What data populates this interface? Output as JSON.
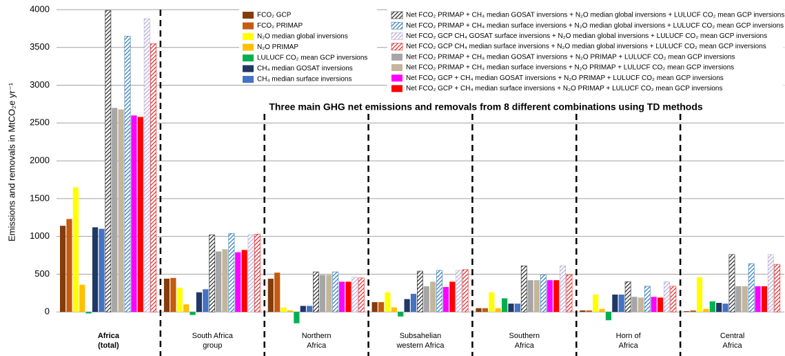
{
  "chart_data": {
    "type": "bar",
    "title": "Three main GHG net emissions and removals from 8 different combinations using TD methods",
    "y_label": "Emissions and removals  in MtCO₂e yr⁻¹",
    "categories": [
      "Africa\n(total)",
      "South Africa\ngroup",
      "Northern\nAfrica",
      "Subsahelian\nwestern Africa",
      "Southern\nAfrica",
      "Horn of\nAfrica",
      "Central\nAfrica"
    ],
    "ylim": [
      -300,
      4000
    ],
    "yticks": [
      0,
      500,
      1000,
      1500,
      2000,
      2500,
      3000,
      3500,
      4000
    ],
    "grid": true,
    "series": [
      {
        "name": "FCO₂ GCP",
        "color": "#843c0c",
        "values": [
          1140,
          440,
          440,
          130,
          50,
          20,
          10
        ]
      },
      {
        "name": "FCO₂ PRIMAP",
        "color": "#c55a11",
        "values": [
          1230,
          450,
          520,
          130,
          50,
          20,
          20
        ]
      },
      {
        "name": "N₂O median global inversions",
        "color": "#ffff00",
        "values": [
          1650,
          320,
          60,
          260,
          260,
          230,
          460
        ]
      },
      {
        "name": "N₂O PRIMAP",
        "color": "#ffc000",
        "values": [
          360,
          100,
          20,
          60,
          50,
          40,
          40
        ]
      },
      {
        "name": "LULUCF CO₂ mean GCP inversions",
        "color": "#00b050",
        "values": [
          -20,
          -40,
          -150,
          -60,
          180,
          -110,
          140
        ]
      },
      {
        "name": "CH₄ median GOSAT inversions",
        "color": "#1f3864",
        "values": [
          1120,
          260,
          80,
          170,
          110,
          230,
          120
        ]
      },
      {
        "name": "CH₄ median surface inversions",
        "color": "#4472c4",
        "values": [
          1100,
          300,
          80,
          240,
          110,
          230,
          110
        ]
      },
      {
        "name": "Net  FCO₂ PRIMAP + CH₄ median GOSAT inversions + N₂O median global inversions + LULUCF CO₂ mean GCP inversions",
        "color": "#222222",
        "hatch": true,
        "values": [
          3990,
          1020,
          530,
          540,
          610,
          400,
          760
        ]
      },
      {
        "name": "Net  FCO₂ PRIMAP + CH₄ median GOSAT inversions + N₂O PRIMAP + LULUCF CO₂ mean GCP inversions",
        "color": "#a6a6a6",
        "values": [
          2700,
          800,
          490,
          340,
          420,
          200,
          340
        ]
      },
      {
        "name": "Net  FCO₂ PRIMAP + CH₄ median surface inversions + N₂O PRIMAP + LULUCF CO₂ mean GCP inversions",
        "color": "#c4b59b",
        "values": [
          2680,
          830,
          490,
          400,
          420,
          190,
          340
        ]
      },
      {
        "name": "Net  FCO₂ PRIMAP + CH₄ median surface inversions + N₂O median global inversions + LULUCF CO₂ mean GCP inversions",
        "color": "#2e75b6",
        "hatch": true,
        "values": [
          3650,
          1040,
          530,
          550,
          490,
          340,
          640
        ]
      },
      {
        "name": "Net  FCO₂ GCP  + CH₄ median GOSAT inversions + N₂O PRIMAP + LULUCF CO₂ mean GCP inversions",
        "color": "#ff00ff",
        "values": [
          2600,
          790,
          400,
          330,
          420,
          200,
          340
        ]
      },
      {
        "name": "Net  FCO₂ GCP  + CH₄ median surface inversions + N₂O PRIMAP + LULUCF CO₂ mean GCP inversions",
        "color": "#ff0000",
        "values": [
          2580,
          820,
          400,
          400,
          420,
          190,
          340
        ]
      },
      {
        "name": "Net  FCO₂ GCP CH₄  GOSAT surface inversions + N₂O median global inversions + LULUCF CO₂ mean GCP inversions",
        "color": "#b4a7d6",
        "hatch": true,
        "values": [
          3880,
          1020,
          460,
          550,
          610,
          400,
          760
        ]
      },
      {
        "name": "Net  FCO₂ GCP CH₄ median surface inversions + N₂O median global inversions + LULUCF CO₂ mean GCP inversions",
        "color": "#e02020",
        "hatch": true,
        "values": [
          3550,
          1030,
          450,
          560,
          490,
          340,
          630
        ]
      }
    ]
  }
}
